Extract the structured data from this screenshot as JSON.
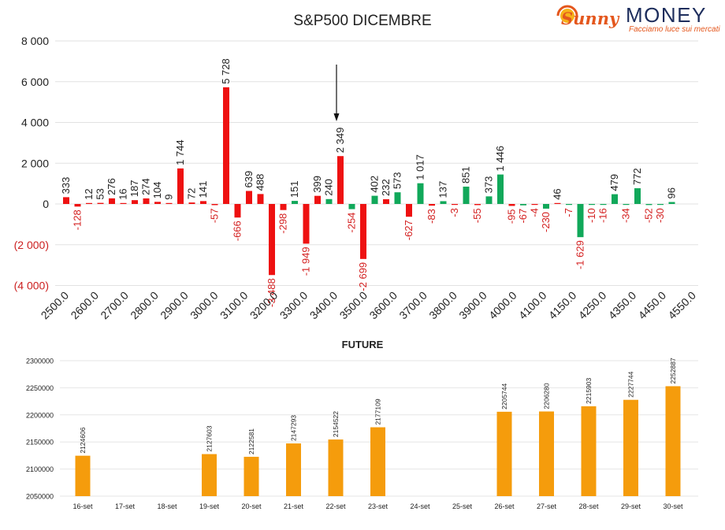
{
  "logo": {
    "brand_script": "Sunny",
    "brand_main": "MONEY",
    "tagline": "Facciamo luce sui mercati"
  },
  "colors": {
    "negative": "#ee1111",
    "positive": "#11a85a",
    "future": "#f59c0c",
    "neg_tick": "#cc2020"
  },
  "chart_data": [
    {
      "type": "bar",
      "title": "S&P500 DICEMBRE",
      "ylim": [
        -4000,
        8000
      ],
      "yticks": [
        {
          "v": 8000,
          "label": "8 000"
        },
        {
          "v": 6000,
          "label": "6 000"
        },
        {
          "v": 4000,
          "label": "4 000"
        },
        {
          "v": 2000,
          "label": "2 000"
        },
        {
          "v": 0,
          "label": "0"
        },
        {
          "v": -2000,
          "label": "(2 000)"
        },
        {
          "v": -4000,
          "label": "(4 000)"
        }
      ],
      "xticks": [
        "2500.0",
        "2600.0",
        "2700.0",
        "2800.0",
        "2900.0",
        "3000.0",
        "3100.0",
        "3200.0",
        "3300.0",
        "3400.0",
        "3500.0",
        "3600.0",
        "3700.0",
        "3800.0",
        "3900.0",
        "4000.0",
        "4100.0",
        "4150.0",
        "4250.0",
        "4350.0",
        "4450.0",
        "4550.0"
      ],
      "arrow_at_x": 2349,
      "series": [
        {
          "values": [
            [
              333,
              -128
            ],
            [
              null,
              12
            ],
            [
              53,
              276
            ],
            [
              null,
              16
            ],
            [
              187,
              274
            ],
            [
              104,
              9
            ],
            [
              1744,
              72
            ],
            [
              141,
              -57
            ],
            [
              5728,
              -666
            ],
            [
              639,
              488
            ],
            [
              -3488,
              -298
            ],
            [
              151,
              -1949
            ],
            [
              399,
              2349
            ],
            [
              -2699,
              573
            ],
            [
              -627,
              1017
            ],
            [
              -83,
              -3
            ],
            [
              -55,
              373
            ],
            [
              -95,
              -4
            ],
            [
              -230,
              46
            ],
            [
              -7,
              -1629
            ],
            [
              -16,
              479
            ],
            [
              -34,
              772
            ],
            [
              -52,
              -30
            ],
            [
              null,
              96
            ]
          ]
        }
      ],
      "bars": [
        {
          "v": 333,
          "c": "r",
          "l": "333"
        },
        {
          "v": -128,
          "c": "r",
          "l": "-128"
        },
        {
          "v": 12,
          "c": "r",
          "l": "12"
        },
        {
          "v": 53,
          "c": "r",
          "l": "53"
        },
        {
          "v": 276,
          "c": "r",
          "l": "276"
        },
        {
          "v": 16,
          "c": "r",
          "l": "16"
        },
        {
          "v": 187,
          "c": "r",
          "l": "187"
        },
        {
          "v": 274,
          "c": "r",
          "l": "274"
        },
        {
          "v": 104,
          "c": "r",
          "l": "104"
        },
        {
          "v": 9,
          "c": "r",
          "l": "9"
        },
        {
          "v": 1744,
          "c": "r",
          "l": "1 744"
        },
        {
          "v": 72,
          "c": "r",
          "l": "72"
        },
        {
          "v": 141,
          "c": "r",
          "l": "141"
        },
        {
          "v": -57,
          "c": "r",
          "l": "-57"
        },
        {
          "v": 5728,
          "c": "r",
          "l": "5 728"
        },
        {
          "v": -666,
          "c": "r",
          "l": "-666"
        },
        {
          "v": 639,
          "c": "r",
          "l": "639"
        },
        {
          "v": 488,
          "c": "r",
          "l": "488"
        },
        {
          "v": -3488,
          "c": "r",
          "l": "-3 488"
        },
        {
          "v": -298,
          "c": "r",
          "l": "-298"
        },
        {
          "v": 151,
          "c": "g",
          "l": "151"
        },
        {
          "v": -1949,
          "c": "r",
          "l": "-1 949"
        },
        {
          "v": 399,
          "c": "r",
          "l": "399"
        },
        {
          "v": 240,
          "c": "g",
          "l": "240"
        },
        {
          "v": 2349,
          "c": "r",
          "l": "2 349"
        },
        {
          "v": -254,
          "c": "g",
          "l": "-254"
        },
        {
          "v": -2699,
          "c": "r",
          "l": "-2 699"
        },
        {
          "v": 402,
          "c": "g",
          "l": "402"
        },
        {
          "v": 232,
          "c": "r",
          "l": "232"
        },
        {
          "v": 573,
          "c": "g",
          "l": "573"
        },
        {
          "v": -627,
          "c": "r",
          "l": "-627"
        },
        {
          "v": 1017,
          "c": "g",
          "l": "1 017"
        },
        {
          "v": -83,
          "c": "r",
          "l": "-83"
        },
        {
          "v": 137,
          "c": "g",
          "l": "137"
        },
        {
          "v": -3,
          "c": "r",
          "l": "-3"
        },
        {
          "v": 851,
          "c": "g",
          "l": "851"
        },
        {
          "v": -55,
          "c": "r",
          "l": "-55"
        },
        {
          "v": 373,
          "c": "g",
          "l": "373"
        },
        {
          "v": 1446,
          "c": "g",
          "l": "1 446"
        },
        {
          "v": -95,
          "c": "r",
          "l": "-95"
        },
        {
          "v": -67,
          "c": "g",
          "l": "-67"
        },
        {
          "v": -4,
          "c": "r",
          "l": "-4"
        },
        {
          "v": -230,
          "c": "g",
          "l": "-230"
        },
        {
          "v": 46,
          "c": "r",
          "l": "46"
        },
        {
          "v": -7,
          "c": "g",
          "l": "-7"
        },
        {
          "v": -1629,
          "c": "g",
          "l": "-1 629"
        },
        {
          "v": -10,
          "c": "g",
          "l": "-10"
        },
        {
          "v": -16,
          "c": "g",
          "l": "-16"
        },
        {
          "v": 479,
          "c": "g",
          "l": "479"
        },
        {
          "v": -34,
          "c": "g",
          "l": "-34"
        },
        {
          "v": 772,
          "c": "g",
          "l": "772"
        },
        {
          "v": -52,
          "c": "g",
          "l": "-52"
        },
        {
          "v": -30,
          "c": "g",
          "l": "-30"
        },
        {
          "v": 96,
          "c": "g",
          "l": "96"
        }
      ]
    },
    {
      "type": "bar",
      "title": "FUTURE",
      "ylim": [
        2050000,
        2300000
      ],
      "yticks": [
        2300000,
        2250000,
        2200000,
        2150000,
        2100000,
        2050000
      ],
      "categories": [
        "16-set",
        "17-set",
        "18-set",
        "19-set",
        "20-set",
        "21-set",
        "22-set",
        "23-set",
        "24-set",
        "25-set",
        "26-set",
        "27-set",
        "28-set",
        "29-set",
        "30-set"
      ],
      "values": [
        2124606,
        null,
        null,
        2127603,
        2122581,
        2147293,
        2154522,
        2177109,
        null,
        null,
        2205744,
        2206280,
        2215903,
        2227744,
        2252887
      ]
    }
  ]
}
